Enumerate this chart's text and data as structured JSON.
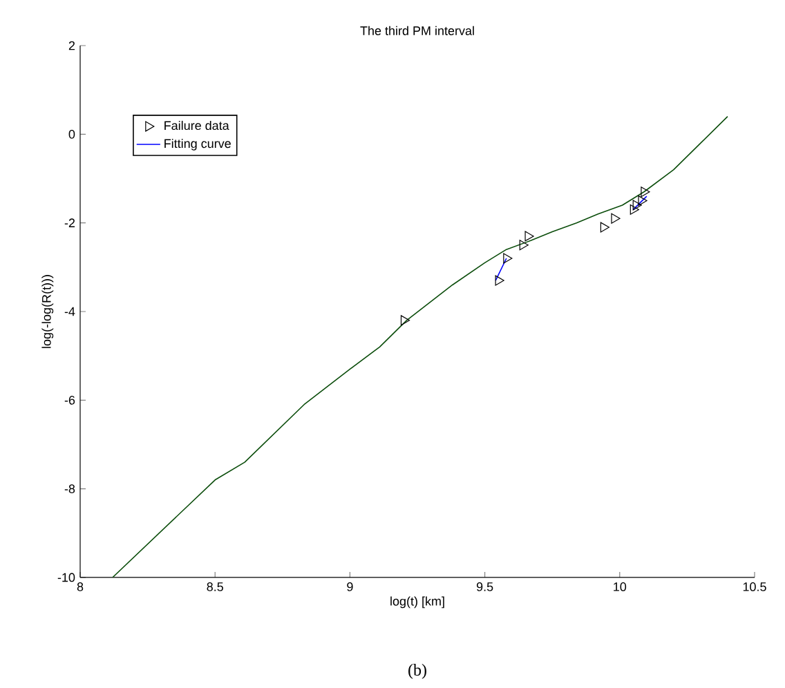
{
  "chart_data": {
    "type": "line",
    "title": "The third PM interval",
    "xlabel": "log(t) [km]",
    "ylabel": "log(-log(R(t)))",
    "annotations": [
      "(b)"
    ],
    "xlim": [
      8,
      10.5
    ],
    "ylim": [
      -10,
      2
    ],
    "xticks": [
      8,
      8.5,
      9,
      9.5,
      10,
      10.5
    ],
    "yticks": [
      -10,
      -8,
      -6,
      -4,
      -2,
      0,
      2
    ],
    "legend": "top left",
    "series": [
      {
        "type": "scatter",
        "name": "Failure data",
        "color": "#000000",
        "marker": "triangle",
        "x": [
          9.2,
          9.55,
          9.58,
          9.64,
          9.66,
          9.94,
          9.98,
          10.05,
          10.06,
          10.08,
          10.09
        ],
        "values": [
          -4.2,
          -3.3,
          -2.8,
          -2.5,
          -2.3,
          -2.1,
          -1.9,
          -1.7,
          -1.6,
          -1.5,
          -1.3
        ]
      },
      {
        "type": "line",
        "name": "Fitting curve",
        "color": "#0000ff",
        "x": [
          9.54,
          9.58,
          9.6,
          10.05,
          10.1
        ],
        "values": [
          -3.3,
          -2.8,
          null,
          -1.7,
          -1.4
        ]
      },
      {
        "color": "#0b4d0b",
        "x": [
          8.12,
          8.31,
          8.5,
          8.61,
          8.83,
          9.0,
          9.11,
          9.21,
          9.38,
          9.5,
          9.58,
          9.67,
          9.75,
          9.84,
          9.92,
          10.01,
          10.09,
          10.2,
          10.3,
          10.4
        ],
        "values": [
          -10,
          -8.9,
          -7.8,
          -7.4,
          -6.1,
          -5.3,
          -4.8,
          -4.2,
          -3.4,
          -2.9,
          -2.6,
          -2.4,
          -2.2,
          -2.0,
          -1.8,
          -1.6,
          -1.3,
          -0.8,
          -0.2,
          0.4
        ]
      }
    ]
  }
}
